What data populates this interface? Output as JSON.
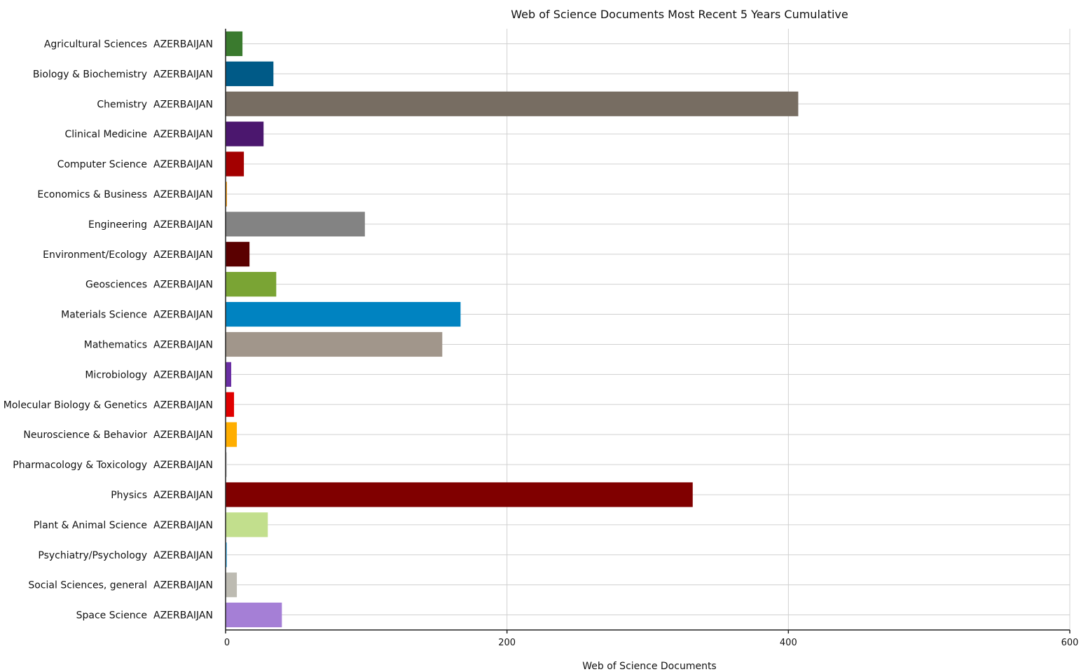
{
  "chart_data": {
    "type": "bar",
    "orientation": "horizontal",
    "title": "Web of Science Documents Most Recent 5 Years Cumulative",
    "xlabel": "Web of Science Documents",
    "ylabel": "",
    "xlim": [
      0,
      600
    ],
    "x_ticks": [
      "0",
      "200",
      "400",
      "600"
    ],
    "x_tick_values": [
      0,
      200,
      400,
      600
    ],
    "grid": true,
    "country": "AZERBAIJAN",
    "categories": [
      "Agricultural Sciences",
      "Biology & Biochemistry",
      "Chemistry",
      "Clinical Medicine",
      "Computer Science",
      "Economics & Business",
      "Engineering",
      "Environment/Ecology",
      "Geosciences",
      "Materials Science",
      "Mathematics",
      "Microbiology",
      "Molecular Biology & Genetics",
      "Neuroscience & Behavior",
      "Pharmacology & Toxicology",
      "Physics",
      "Plant & Animal Science",
      "Psychiatry/Psychology",
      "Social Sciences, general",
      "Space Science"
    ],
    "values": [
      12,
      34,
      407,
      27,
      13,
      1,
      99,
      17,
      36,
      167,
      154,
      4,
      6,
      8,
      1,
      332,
      30,
      1,
      8,
      40
    ],
    "colors": [
      "#3a7a2e",
      "#005a87",
      "#776d62",
      "#4b176e",
      "#a30000",
      "#f5a020",
      "#838383",
      "#5a0000",
      "#7aa434",
      "#0083c1",
      "#a1968b",
      "#6a2fa3",
      "#e00000",
      "#ffae00",
      "#d5d5d5",
      "#800000",
      "#c2df8d",
      "#67c5f2",
      "#bdbbb2",
      "#a57fd6"
    ]
  }
}
